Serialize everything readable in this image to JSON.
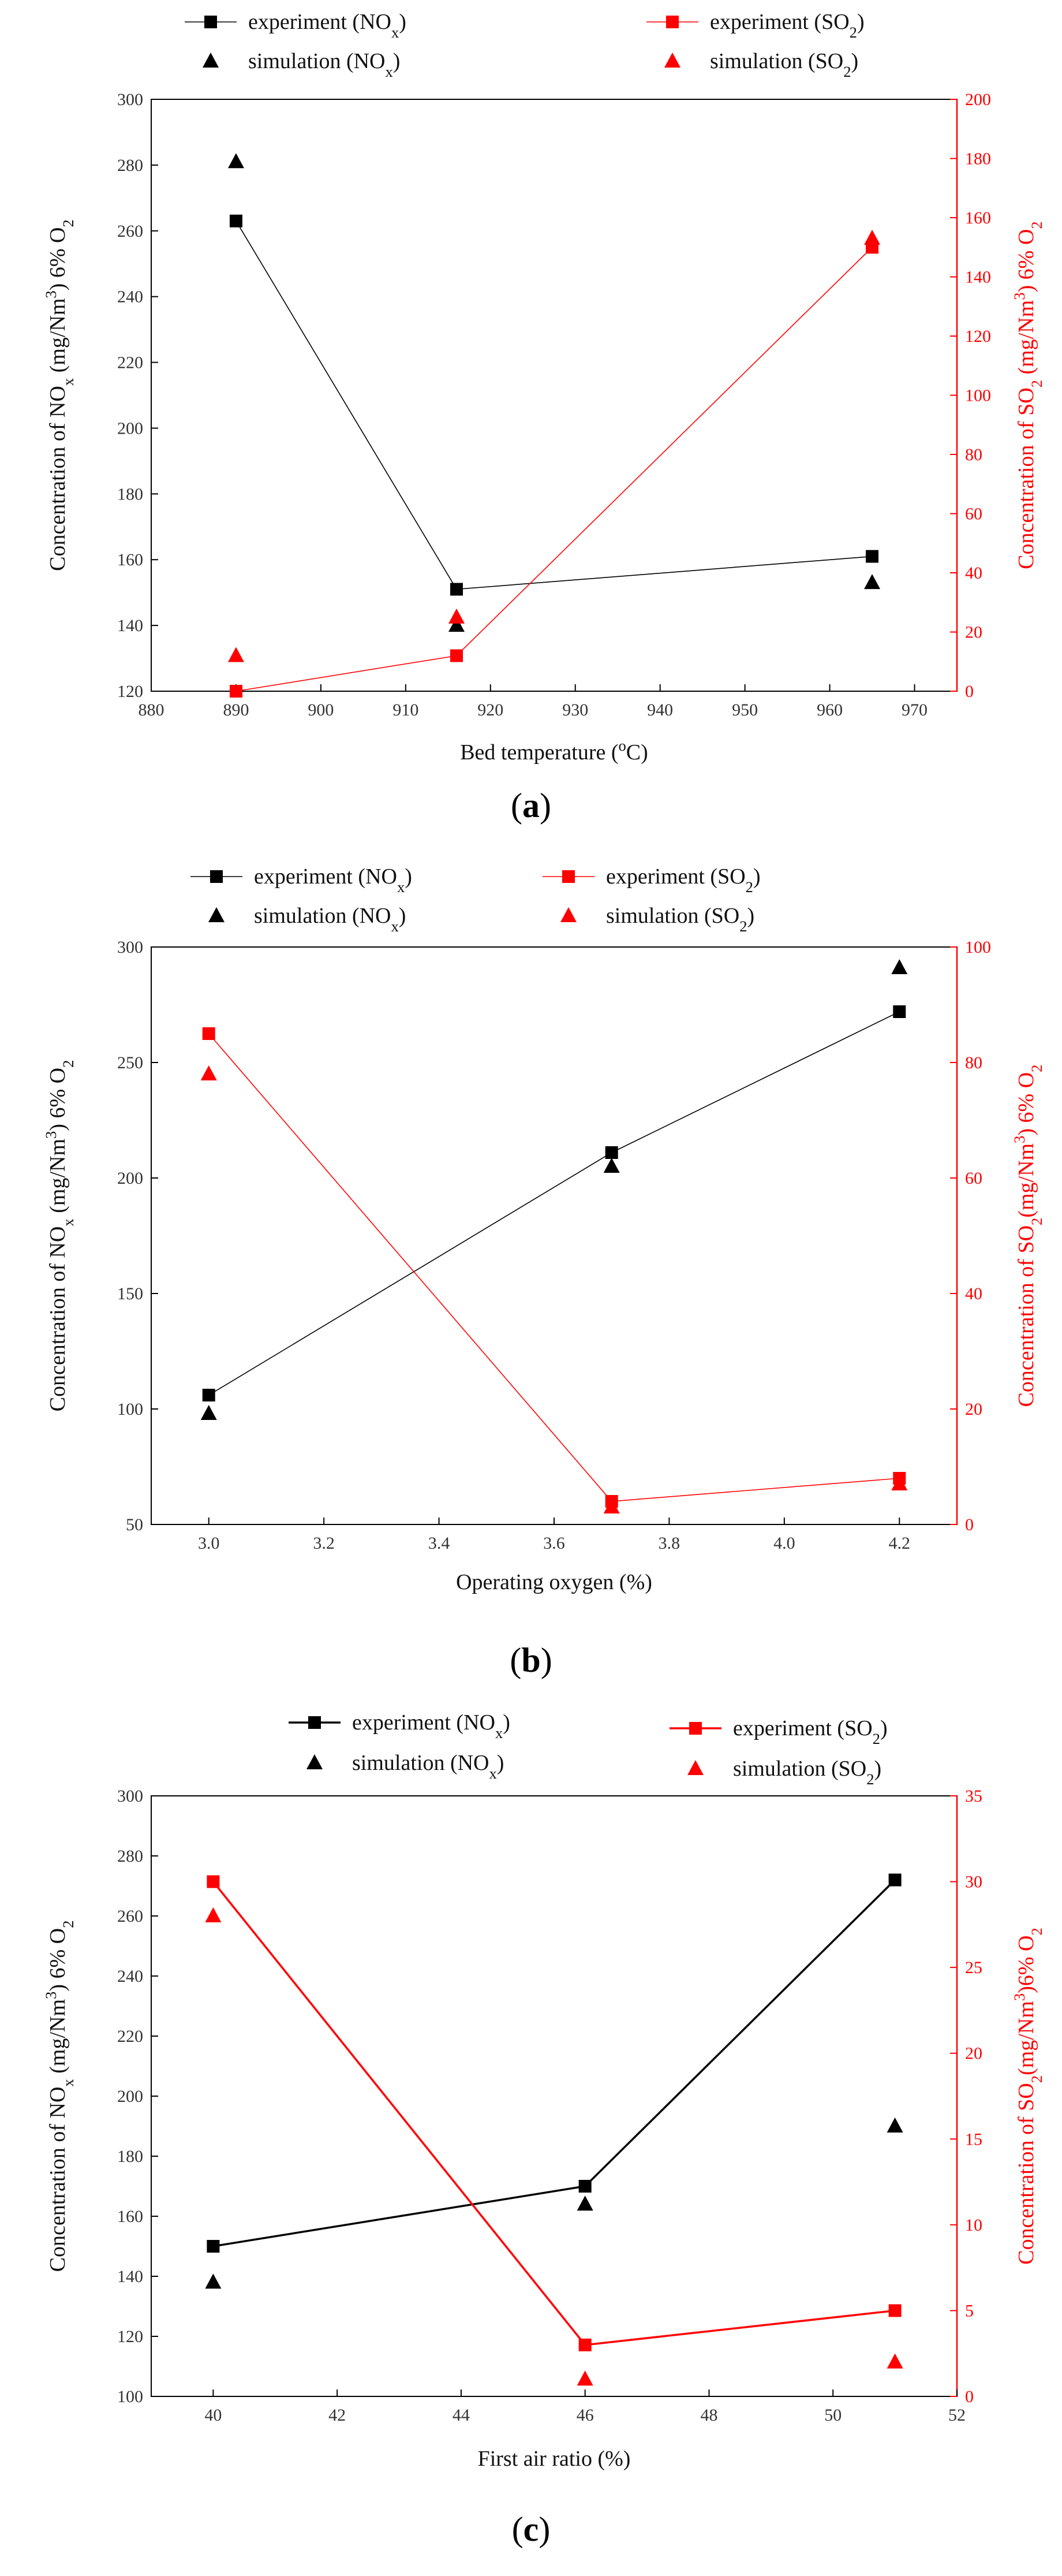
{
  "chart_data": [
    {
      "type": "line",
      "panel": "a",
      "xlabel": "Bed temperature (°C)",
      "ylabel_left": "Concentration of NOx (mg/Nm³) 6% O₂",
      "ylabel_right": "Concentration of SO₂ (mg/Nm³) 6% O₂",
      "xlim": [
        880,
        975
      ],
      "xticks": [
        880,
        890,
        900,
        910,
        920,
        930,
        940,
        950,
        960,
        970
      ],
      "ylim_left": [
        120,
        300
      ],
      "yticks_left": [
        120,
        140,
        160,
        180,
        200,
        220,
        240,
        260,
        280,
        300
      ],
      "ylim_right": [
        0,
        200
      ],
      "yticks_right": [
        0,
        20,
        40,
        60,
        80,
        100,
        120,
        140,
        160,
        180,
        200
      ],
      "legend": {
        "exp_nox": "experiment (NOx)",
        "sim_nox": "simulation (NOx)",
        "exp_so2": "experiment (SO₂)",
        "sim_so2": "simulation (SO₂)"
      },
      "series": [
        {
          "name": "experiment (NOx)",
          "axis": "left",
          "style": "line-square",
          "color": "#000000",
          "x": [
            890,
            916,
            965
          ],
          "y": [
            263,
            151,
            161
          ]
        },
        {
          "name": "simulation (NOx)",
          "axis": "left",
          "style": "triangle",
          "color": "#000000",
          "x": [
            890,
            916,
            965
          ],
          "y": [
            281,
            140,
            153
          ]
        },
        {
          "name": "experiment (SO₂)",
          "axis": "right",
          "style": "line-square",
          "color": "#ff0000",
          "x": [
            890,
            916,
            965
          ],
          "y": [
            0,
            12,
            150
          ]
        },
        {
          "name": "simulation (SO₂)",
          "axis": "right",
          "style": "triangle",
          "color": "#ff0000",
          "x": [
            890,
            916,
            965
          ],
          "y": [
            12,
            25,
            153
          ]
        }
      ]
    },
    {
      "type": "line",
      "panel": "b",
      "xlabel": "Operating oxygen  (%)",
      "ylabel_left": "Concentration of NOx (mg/Nm³) 6% O₂",
      "ylabel_right": "Concentration of SO₂(mg/Nm³) 6% O₂",
      "xlim": [
        2.9,
        4.3
      ],
      "xticks": [
        3.0,
        3.2,
        3.4,
        3.6,
        3.8,
        4.0,
        4.2
      ],
      "ylim_left": [
        50,
        300
      ],
      "yticks_left": [
        50,
        100,
        150,
        200,
        250,
        300
      ],
      "ylim_right": [
        0,
        100
      ],
      "yticks_right": [
        0,
        20,
        40,
        60,
        80,
        100
      ],
      "legend": {
        "exp_nox": "experiment (NOx)",
        "sim_nox": "simulation (NOx)",
        "exp_so2": "experiment (SO₂)",
        "sim_so2": "simulation (SO₂)"
      },
      "series": [
        {
          "name": "experiment (NOx)",
          "axis": "left",
          "style": "line-square",
          "color": "#000000",
          "x": [
            3.0,
            3.7,
            4.2
          ],
          "y": [
            106,
            211,
            272
          ]
        },
        {
          "name": "simulation (NOx)",
          "axis": "left",
          "style": "triangle",
          "color": "#000000",
          "x": [
            3.0,
            3.7,
            4.2
          ],
          "y": [
            98,
            205,
            291
          ]
        },
        {
          "name": "experiment (SO₂)",
          "axis": "right",
          "style": "line-square",
          "color": "#ff0000",
          "x": [
            3.0,
            3.7,
            4.2
          ],
          "y": [
            85,
            4,
            8
          ]
        },
        {
          "name": "simulation (SO₂)",
          "axis": "right",
          "style": "triangle",
          "color": "#ff0000",
          "x": [
            3.0,
            3.7,
            4.2
          ],
          "y": [
            78,
            3,
            7
          ]
        }
      ]
    },
    {
      "type": "line",
      "panel": "c",
      "xlabel": "First air ratio (%)",
      "ylabel_left": "Concentration of NOx (mg/Nm³) 6% O₂",
      "ylabel_right": "Concentration of SO₂(mg/Nm³)6% O₂",
      "xlim": [
        39,
        52
      ],
      "xticks": [
        40,
        42,
        44,
        46,
        48,
        50,
        52
      ],
      "ylim_left": [
        100,
        300
      ],
      "yticks_left": [
        100,
        120,
        140,
        160,
        180,
        200,
        220,
        240,
        260,
        280,
        300
      ],
      "ylim_right": [
        0,
        35
      ],
      "yticks_right": [
        0,
        5,
        10,
        15,
        20,
        25,
        30,
        35
      ],
      "legend": {
        "exp_nox": "experiment (NOx)",
        "sim_nox": "simulation (NOx)",
        "exp_so2": "experiment (SO₂)",
        "sim_so2": "simulation (SO₂)"
      },
      "series": [
        {
          "name": "experiment (NOx)",
          "axis": "left",
          "style": "line-square",
          "color": "#000000",
          "x": [
            40,
            46,
            51
          ],
          "y": [
            150,
            170,
            272
          ]
        },
        {
          "name": "simulation (NOx)",
          "axis": "left",
          "style": "triangle",
          "color": "#000000",
          "x": [
            40,
            46,
            51
          ],
          "y": [
            138,
            164,
            190
          ]
        },
        {
          "name": "experiment (SO₂)",
          "axis": "right",
          "style": "line-square",
          "color": "#ff0000",
          "x": [
            40,
            46,
            51
          ],
          "y": [
            30,
            3,
            5
          ]
        },
        {
          "name": "simulation (SO₂)",
          "axis": "right",
          "style": "triangle",
          "color": "#ff0000",
          "x": [
            40,
            46,
            51
          ],
          "y": [
            28,
            1,
            2
          ]
        }
      ]
    }
  ],
  "panel_labels": [
    "(a)",
    "(b)",
    "(c)"
  ]
}
